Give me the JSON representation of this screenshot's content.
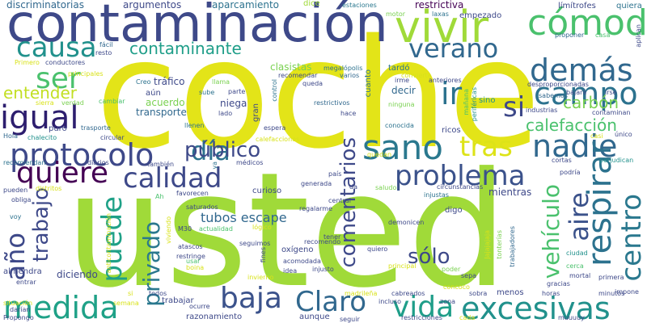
{
  "words": [
    {
      "text": "coche",
      "color": "#e3e418"
    },
    {
      "text": "usted",
      "color": "#a0da39"
    },
    {
      "text": "contaminación",
      "color": "#3e4989"
    },
    {
      "text": "medida",
      "color": "#1fa187"
    },
    {
      "text": "protocolo",
      "color": "#3e4989"
    },
    {
      "text": "vivir",
      "color": "#a0da39"
    },
    {
      "text": "cómodo",
      "color": "#4ac16d"
    },
    {
      "text": "problema",
      "color": "#3b528b"
    },
    {
      "text": "excesivas",
      "color": "#21918c"
    },
    {
      "text": "calidad",
      "color": "#3e4989"
    },
    {
      "text": "sano",
      "color": "#2a788e"
    },
    {
      "text": "nadie",
      "color": "#31688e"
    },
    {
      "text": "respirar",
      "color": "#2c728e"
    },
    {
      "text": "vida",
      "color": "#1f9e89"
    },
    {
      "text": "quiere",
      "color": "#440154"
    },
    {
      "text": "igual",
      "color": "#2d1e6e"
    },
    {
      "text": "día",
      "color": "#2c728e"
    },
    {
      "text": "demás",
      "color": "#31688e"
    },
    {
      "text": "causa",
      "color": "#21918c"
    },
    {
      "text": "campo",
      "color": "#2c728e"
    },
    {
      "text": "verano",
      "color": "#31688e"
    },
    {
      "text": "centro",
      "color": "#2a788e"
    },
    {
      "text": "baja",
      "color": "#3b528b"
    },
    {
      "text": "puede",
      "color": "#1fa187"
    },
    {
      "text": "tras",
      "color": "#dde318"
    },
    {
      "text": "Claro",
      "color": "#31688e"
    },
    {
      "text": "aire",
      "color": "#3b528b"
    },
    {
      "text": "vehículo",
      "color": "#4ac16d"
    },
    {
      "text": "público",
      "color": "#3e4989"
    },
    {
      "text": "año",
      "color": "#3e4989"
    },
    {
      "text": "trabajo",
      "color": "#3e4989"
    },
    {
      "text": "privado",
      "color": "#2a788e"
    },
    {
      "text": "comentarios",
      "color": "#3e4989"
    },
    {
      "text": "ser",
      "color": "#4ac16d"
    },
    {
      "text": "ir",
      "color": "#2c728e"
    },
    {
      "text": "si",
      "color": "#3e4989"
    },
    {
      "text": "contaminante",
      "color": "#1f9e89"
    },
    {
      "text": "entender",
      "color": "#c2df23"
    },
    {
      "text": "calefacción",
      "color": "#4ac16d"
    },
    {
      "text": "carbón",
      "color": "#7ad151"
    },
    {
      "text": "sólo",
      "color": "#3e4989"
    },
    {
      "text": "tubos escape",
      "color": "#31688e"
    },
    {
      "text": "discriminatorias",
      "color": "#31688e"
    },
    {
      "text": "argumentos",
      "color": "#3e4989"
    },
    {
      "text": "aparcamiento",
      "color": "#2c728e"
    },
    {
      "text": "dice",
      "color": "#a0da39"
    },
    {
      "text": "estaciones",
      "color": "#2a788e"
    },
    {
      "text": "restrictiva",
      "color": "#440154"
    },
    {
      "text": "límítrofes",
      "color": "#3e4989"
    },
    {
      "text": "quiera",
      "color": "#2c728e"
    },
    {
      "text": "empezado",
      "color": "#3e4989"
    },
    {
      "text": "motor",
      "color": "#7ad151"
    },
    {
      "text": "laxas",
      "color": "#2c728e"
    },
    {
      "text": "fácil",
      "color": "#31688e"
    },
    {
      "text": "clasistas",
      "color": "#7ad151"
    },
    {
      "text": "megalópolis",
      "color": "#2c728e"
    },
    {
      "text": "recomendar",
      "color": "#3e4989"
    },
    {
      "text": "conductores",
      "color": "#3e4989"
    },
    {
      "text": "principales",
      "color": "#d8e219"
    },
    {
      "text": "tardó",
      "color": "#2c728e"
    },
    {
      "text": "convierta",
      "color": "#d8e219"
    },
    {
      "text": "anteriores",
      "color": "#3e4989"
    },
    {
      "text": "proponer",
      "color": "#31688e"
    },
    {
      "text": "casa",
      "color": "#4ac16d"
    },
    {
      "text": "aplican",
      "color": "#3e4989"
    },
    {
      "text": "Primero",
      "color": "#d8e219"
    },
    {
      "text": "resto",
      "color": "#3e4989"
    },
    {
      "text": "tráfico",
      "color": "#3e4989"
    },
    {
      "text": "Creo",
      "color": "#2c728e"
    },
    {
      "text": "llama",
      "color": "#7ad151"
    },
    {
      "text": "queda",
      "color": "#3e4989"
    },
    {
      "text": "varios",
      "color": "#31688e"
    },
    {
      "text": "irme",
      "color": "#3e4989"
    },
    {
      "text": "desproporcionadas",
      "color": "#3e4989"
    },
    {
      "text": "bajará",
      "color": "#3e4989"
    },
    {
      "text": "irse",
      "color": "#3e4989"
    },
    {
      "text": "sabemos",
      "color": "#31688e"
    },
    {
      "text": "contaminan",
      "color": "#3e4989"
    },
    {
      "text": "cuanto",
      "color": "#2c728e"
    },
    {
      "text": "control",
      "color": "#2c728e"
    },
    {
      "text": "periféricas",
      "color": "#21918c"
    },
    {
      "text": "mañana",
      "color": "#4ac16d"
    },
    {
      "text": "industrias",
      "color": "#3e4989"
    },
    {
      "text": "único",
      "color": "#3e4989"
    },
    {
      "text": "casi",
      "color": "#d8e219"
    },
    {
      "text": "perjudican",
      "color": "#21918c"
    },
    {
      "text": "sierra",
      "color": "#d8e219"
    },
    {
      "text": "verdad",
      "color": "#7ad151"
    },
    {
      "text": "cambiar",
      "color": "#4ac16d"
    },
    {
      "text": "aún",
      "color": "#3e4989"
    },
    {
      "text": "sube",
      "color": "#2c728e"
    },
    {
      "text": "acuerdo",
      "color": "#7ad151"
    },
    {
      "text": "niega",
      "color": "#3e4989"
    },
    {
      "text": "transporte",
      "color": "#31688e"
    },
    {
      "text": "parte",
      "color": "#3e4989"
    },
    {
      "text": "restrictivos",
      "color": "#31688e"
    },
    {
      "text": "decir",
      "color": "#31688e"
    },
    {
      "text": "ninguna",
      "color": "#7ad151"
    },
    {
      "text": "sino",
      "color": "#21918c"
    },
    {
      "text": "hace",
      "color": "#3e4989"
    },
    {
      "text": "puro",
      "color": "#3e4989"
    },
    {
      "text": "trasporte",
      "color": "#31688e"
    },
    {
      "text": "llenen",
      "color": "#2c728e"
    },
    {
      "text": "lado",
      "color": "#3e4989"
    },
    {
      "text": "gran",
      "color": "#3e4989"
    },
    {
      "text": "espera",
      "color": "#3e4989"
    },
    {
      "text": "conocida",
      "color": "#2c728e"
    },
    {
      "text": "ricos",
      "color": "#3e4989"
    },
    {
      "text": "Hola",
      "color": "#31688e"
    },
    {
      "text": "chalecito",
      "color": "#21918c"
    },
    {
      "text": "circular",
      "color": "#3e4989"
    },
    {
      "text": "calefacciones",
      "color": "#d8e219"
    },
    {
      "text": "recomiendan",
      "color": "#2c728e"
    },
    {
      "text": "diarios",
      "color": "#3e4989"
    },
    {
      "text": "también",
      "color": "#3e4989"
    },
    {
      "text": "médicos",
      "color": "#3e4989"
    },
    {
      "text": "ya",
      "color": "#2c728e"
    },
    {
      "text": "quedan",
      "color": "#d8e219"
    },
    {
      "text": "circunstancias",
      "color": "#3e4989"
    },
    {
      "text": "cortas",
      "color": "#3e4989"
    },
    {
      "text": "podría",
      "color": "#3e4989"
    },
    {
      "text": "país",
      "color": "#3e4989"
    },
    {
      "text": "da",
      "color": "#3e4989"
    },
    {
      "text": "pueden",
      "color": "#3e4989"
    },
    {
      "text": "distritos",
      "color": "#d8e219"
    },
    {
      "text": "obliga",
      "color": "#3e4989"
    },
    {
      "text": "favorecen",
      "color": "#3e4989"
    },
    {
      "text": "Ah",
      "color": "#4ac16d"
    },
    {
      "text": "generada",
      "color": "#3e4989"
    },
    {
      "text": "saludo",
      "color": "#7ad151"
    },
    {
      "text": "injustas",
      "color": "#2c728e"
    },
    {
      "text": "mientras",
      "color": "#3e4989"
    },
    {
      "text": "central",
      "color": "#3e4989"
    },
    {
      "text": "regalarme",
      "color": "#3e4989"
    },
    {
      "text": "voy",
      "color": "#2c728e"
    },
    {
      "text": "saturados",
      "color": "#3e4989"
    },
    {
      "text": "M30",
      "color": "#3e4989"
    },
    {
      "text": "actualidad",
      "color": "#4ac16d"
    },
    {
      "text": "digo",
      "color": "#3e4989"
    },
    {
      "text": "demonicen",
      "color": "#3e4989"
    },
    {
      "text": "tener",
      "color": "#3e4989"
    },
    {
      "text": "anticontaminación",
      "color": "#d8e219"
    },
    {
      "text": "viviendo",
      "color": "#d8e219"
    },
    {
      "text": "atascos",
      "color": "#3e4989"
    },
    {
      "text": "restringe",
      "color": "#3e4989"
    },
    {
      "text": "lógico",
      "color": "#d8e219"
    },
    {
      "text": "seguimos",
      "color": "#3e4989"
    },
    {
      "text": "oxígeno",
      "color": "#3e4989"
    },
    {
      "text": "recomendo",
      "color": "#3e4989"
    },
    {
      "text": "quiero",
      "color": "#3e4989"
    },
    {
      "text": "Jajajajaja",
      "color": "#d8e219"
    },
    {
      "text": "tonterías",
      "color": "#7ad151"
    },
    {
      "text": "trabajadores",
      "color": "#31688e"
    },
    {
      "text": "ciudad",
      "color": "#21918c"
    },
    {
      "text": "usar",
      "color": "#4ac16d"
    },
    {
      "text": "boina",
      "color": "#d8e219"
    },
    {
      "text": "fines",
      "color": "#3e4989"
    },
    {
      "text": "invierno",
      "color": "#d8e219"
    },
    {
      "text": "acomodada",
      "color": "#3e4989"
    },
    {
      "text": "idea",
      "color": "#3e4989"
    },
    {
      "text": "injusto",
      "color": "#3e4989"
    },
    {
      "text": "principal",
      "color": "#d8e219"
    },
    {
      "text": "poder",
      "color": "#7ad151"
    },
    {
      "text": "sepa",
      "color": "#3e4989"
    },
    {
      "text": "cerca",
      "color": "#4ac16d"
    },
    {
      "text": "mortal",
      "color": "#3e4989"
    },
    {
      "text": "primera",
      "color": "#3e4989"
    },
    {
      "text": "almendra",
      "color": "#3e4989"
    },
    {
      "text": "entrar",
      "color": "#3e4989"
    },
    {
      "text": "diciendo",
      "color": "#3e4989"
    },
    {
      "text": "trabajar",
      "color": "#3e4989"
    },
    {
      "text": "cabreados",
      "color": "#3e4989"
    },
    {
      "text": "concoco",
      "color": "#d8e219"
    },
    {
      "text": "sobra",
      "color": "#3e4989"
    },
    {
      "text": "menos",
      "color": "#3e4989"
    },
    {
      "text": "horas",
      "color": "#3e4989"
    },
    {
      "text": "gracias",
      "color": "#3e4989"
    },
    {
      "text": "minutos",
      "color": "#3e4989"
    },
    {
      "text": "impone",
      "color": "#3e4989"
    },
    {
      "text": "situación",
      "color": "#d8e219"
    },
    {
      "text": "darían",
      "color": "#3e4989"
    },
    {
      "text": "Propongo",
      "color": "#3e4989"
    },
    {
      "text": "semana",
      "color": "#d8e219"
    },
    {
      "text": "si",
      "color": "#d8e219"
    },
    {
      "text": "todos",
      "color": "#3e4989"
    },
    {
      "text": "ocurre",
      "color": "#3e4989"
    },
    {
      "text": "razonamiento",
      "color": "#3e4989"
    },
    {
      "text": "aunque",
      "color": "#3e4989"
    },
    {
      "text": "madrileña",
      "color": "#d8e219"
    },
    {
      "text": "incluso",
      "color": "#3e4989"
    },
    {
      "text": "zona",
      "color": "#3e4989"
    },
    {
      "text": "restricciones",
      "color": "#3e4989"
    },
    {
      "text": "cada",
      "color": "#d8e219"
    },
    {
      "text": "seguir",
      "color": "#3e4989"
    },
    {
      "text": "muuuuy",
      "color": "#3e4989"
    },
    {
      "text": "curioso",
      "color": "#3e4989"
    }
  ]
}
